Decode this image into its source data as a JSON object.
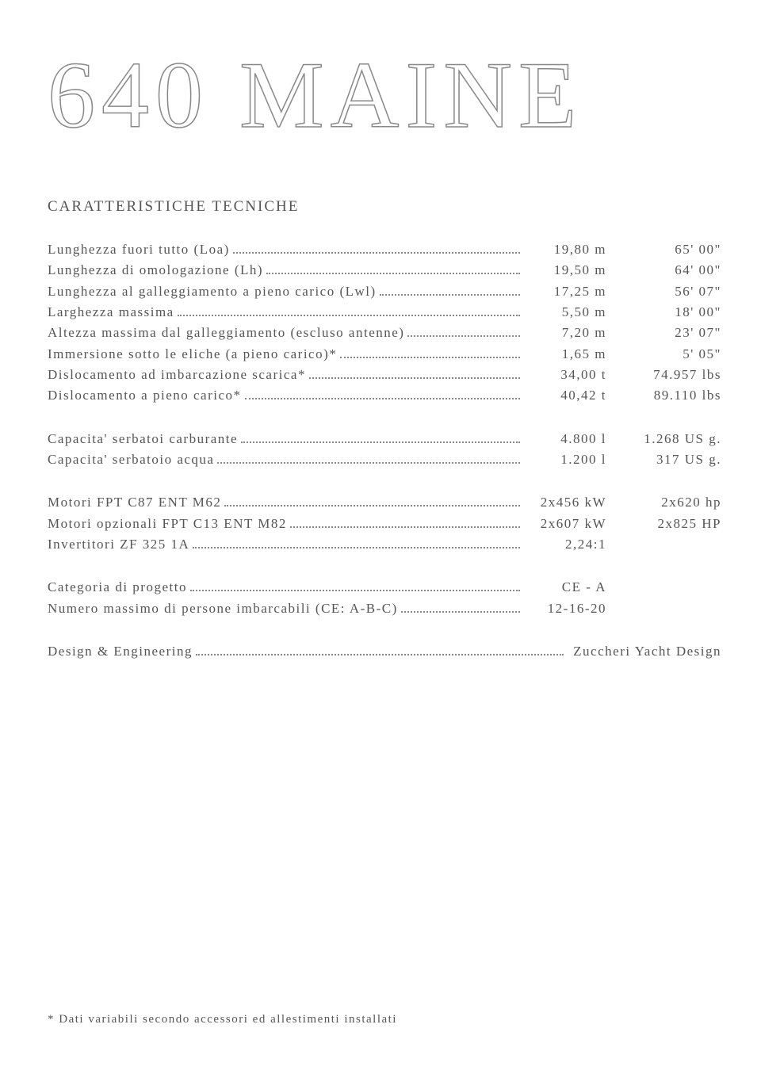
{
  "title": "640 MAINE",
  "section_heading": "CARATTERISTICHE TECNICHE",
  "colors": {
    "text": "#555555",
    "title_stroke": "#888888",
    "dots": "#888888",
    "background": "#ffffff"
  },
  "typography": {
    "title_fontsize": 120,
    "title_letterspacing": 8,
    "heading_fontsize": 19,
    "body_fontsize": 17,
    "body_letterspacing": 1.5,
    "footnote_fontsize": 15
  },
  "blocks": [
    {
      "rows": [
        {
          "label": "Lunghezza fuori tutto (Loa)",
          "val1": "19,80 m",
          "val2": "65' 00\""
        },
        {
          "label": "Lunghezza di omologazione (Lh)",
          "val1": "19,50 m",
          "val2": "64' 00\""
        },
        {
          "label": "Lunghezza al galleggiamento a pieno carico (Lwl)",
          "val1": "17,25 m",
          "val2": "56' 07\""
        },
        {
          "label": "Larghezza massima",
          "val1": "5,50 m",
          "val2": "18' 00\""
        },
        {
          "label": "Altezza massima dal galleggiamento (escluso antenne)",
          "val1": "7,20 m",
          "val2": "23' 07\""
        },
        {
          "label": "Immersione sotto le eliche (a pieno carico)*",
          "val1": "1,65 m",
          "val2": "5' 05\""
        },
        {
          "label": "Dislocamento ad imbarcazione scarica*",
          "val1": "34,00 t",
          "val2": "74.957 lbs"
        },
        {
          "label": "Dislocamento a pieno carico*",
          "val1": "40,42 t",
          "val2": "89.110 lbs"
        }
      ]
    },
    {
      "rows": [
        {
          "label": "Capacita' serbatoi carburante",
          "val1": "4.800 l",
          "val2": "1.268 US g."
        },
        {
          "label": "Capacita' serbatoio acqua",
          "val1": "1.200 l",
          "val2": "317 US g."
        }
      ]
    },
    {
      "rows": [
        {
          "label": "Motori FPT C87 ENT M62",
          "val1": "2x456 kW",
          "val2": "2x620 hp"
        },
        {
          "label": "Motori opzionali FPT C13 ENT M82",
          "val1": "2x607 kW",
          "val2": "2x825 HP"
        },
        {
          "label": "Invertitori ZF 325 1A",
          "val1": "2,24:1",
          "val2": ""
        }
      ]
    },
    {
      "rows": [
        {
          "label": "Categoria di progetto",
          "val1": "CE - A",
          "val2": ""
        },
        {
          "label": "Numero massimo di persone imbarcabili (CE: A-B-C)",
          "val1": "12-16-20",
          "val2": ""
        }
      ]
    },
    {
      "rows": [
        {
          "label": "Design & Engineering",
          "val_wide": "Zuccheri Yacht Design"
        }
      ]
    }
  ],
  "footnote": "* Dati variabili secondo accessori ed allestimenti installati"
}
